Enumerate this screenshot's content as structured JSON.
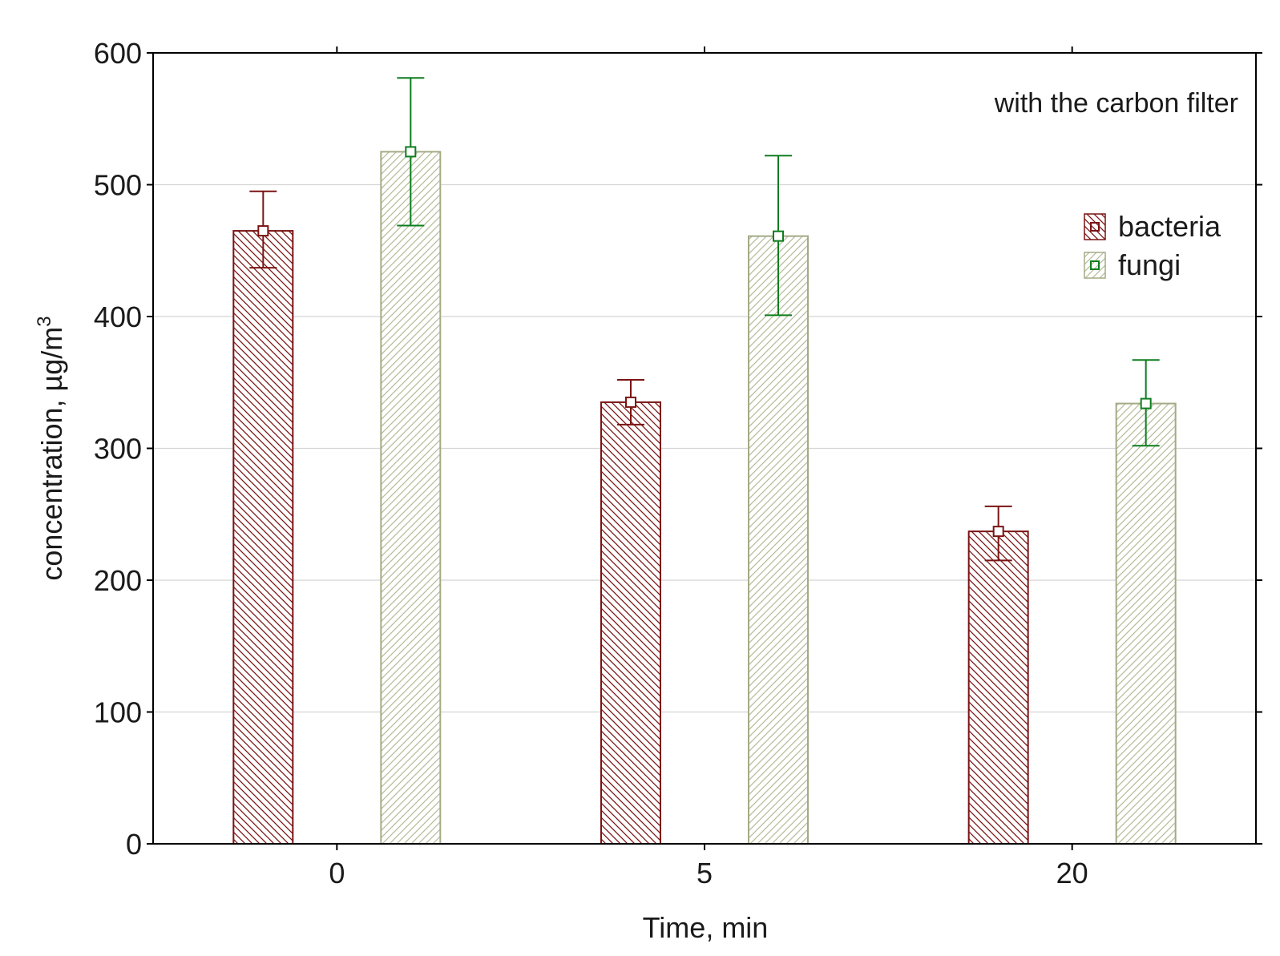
{
  "chart_data": {
    "type": "bar",
    "title": "",
    "annotation": "with the carbon filter",
    "xlabel": "Time, min",
    "ylabel": "concentration, µg/m",
    "ylabel_superscript": "3",
    "categories": [
      "0",
      "5",
      "20"
    ],
    "ylim": [
      0,
      600
    ],
    "yticks": [
      0,
      100,
      200,
      300,
      400,
      500,
      600
    ],
    "grid": true,
    "legend_position": "top-right",
    "series": [
      {
        "name": "bacteria",
        "color": "#7a1414",
        "hatch": "backslash",
        "values": [
          465,
          335,
          237
        ],
        "error_low": [
          437,
          318,
          215
        ],
        "error_high": [
          495,
          352,
          256
        ]
      },
      {
        "name": "fungi",
        "color": "#0e7d1e",
        "bar_color": "#a3ab86",
        "hatch": "slash",
        "values": [
          525,
          461,
          334
        ],
        "error_low": [
          469,
          401,
          302
        ],
        "error_high": [
          581,
          522,
          367
        ]
      }
    ]
  }
}
